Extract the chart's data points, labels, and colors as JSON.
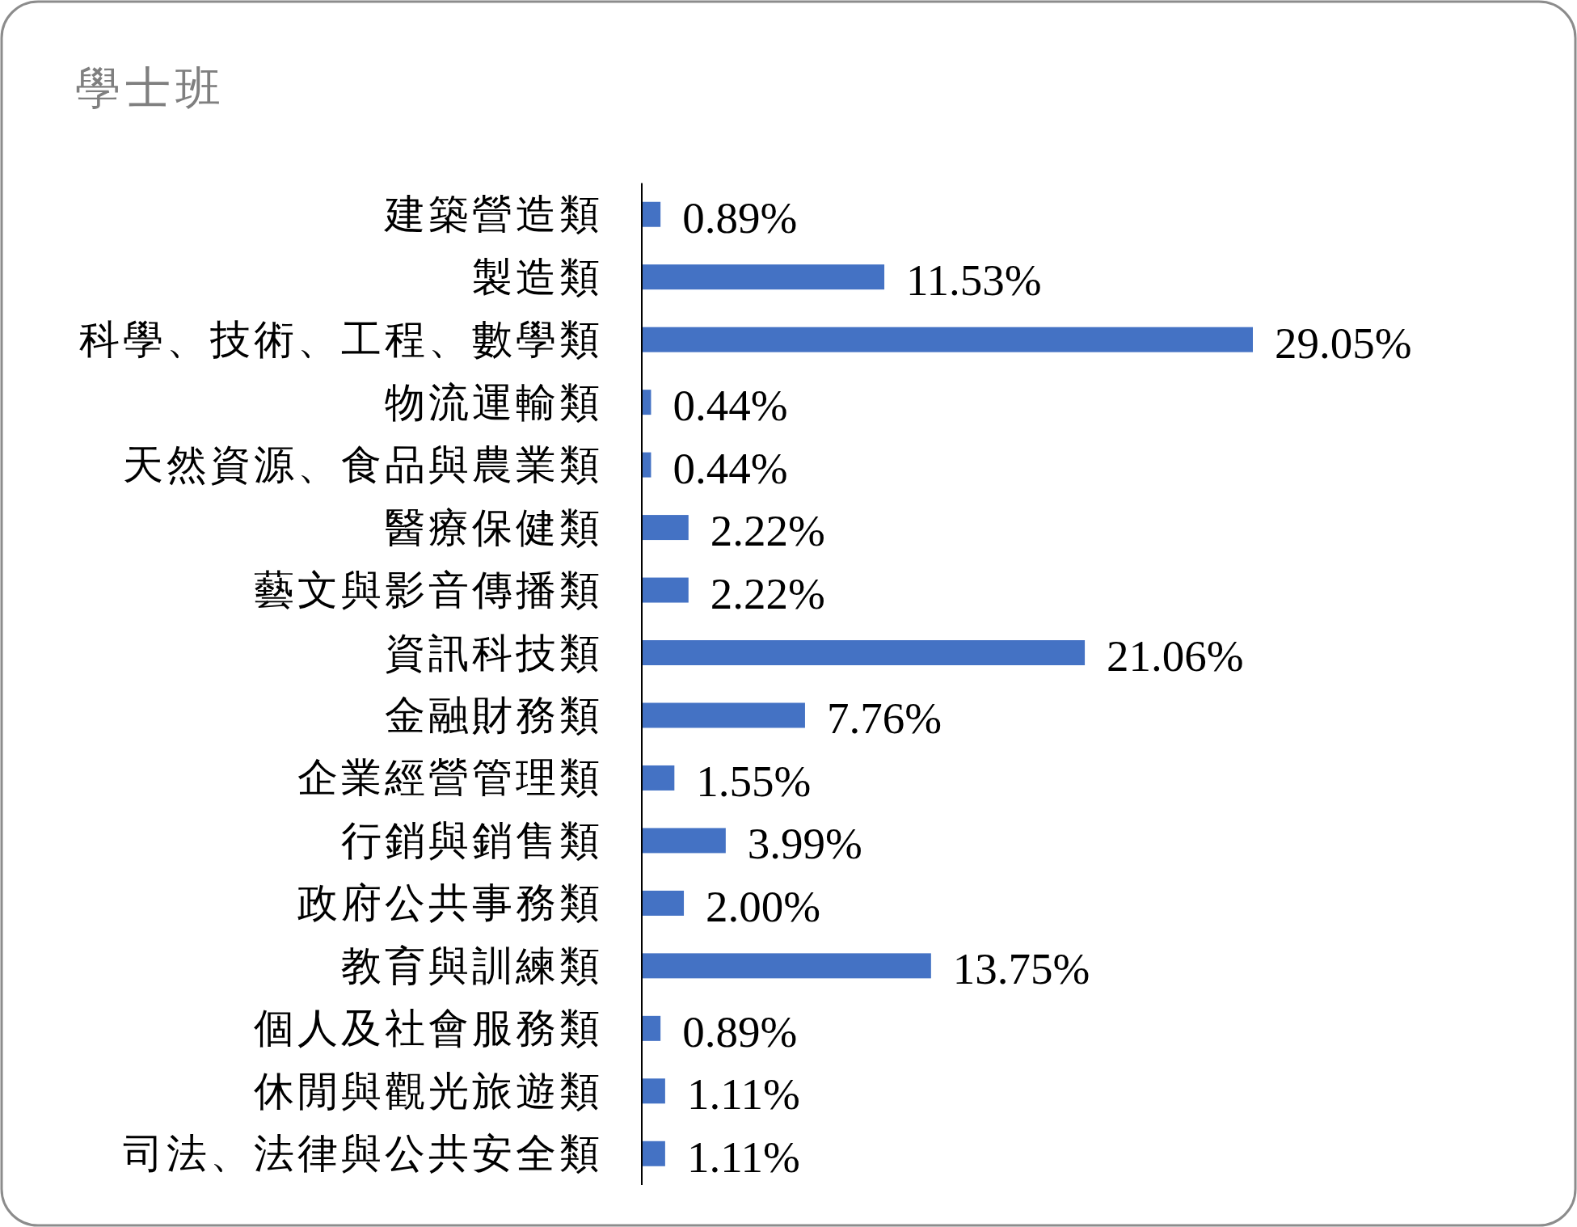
{
  "chart_data": {
    "type": "bar",
    "orientation": "horizontal",
    "title": "學士班",
    "categories": [
      "建築營造類",
      "製造類",
      "科學、技術、工程、數學類",
      "物流運輸類",
      "天然資源、食品與農業類",
      "醫療保健類",
      "藝文與影音傳播類",
      "資訊科技類",
      "金融財務類",
      "企業經營管理類",
      "行銷與銷售類",
      "政府公共事務類",
      "教育與訓練類",
      "個人及社會服務類",
      "休閒與觀光旅遊類",
      "司法、法律與公共安全類"
    ],
    "values": [
      0.89,
      11.53,
      29.05,
      0.44,
      0.44,
      2.22,
      2.22,
      21.06,
      7.76,
      1.55,
      3.99,
      2.0,
      13.75,
      0.89,
      1.11,
      1.11
    ],
    "value_labels": [
      "0.89%",
      "11.53%",
      "29.05%",
      "0.44%",
      "0.44%",
      "2.22%",
      "2.22%",
      "21.06%",
      "7.76%",
      "1.55%",
      "3.99%",
      "2.00%",
      "13.75%",
      "0.89%",
      "1.11%",
      "1.11%"
    ],
    "color": "#4472c4",
    "tick_labels": "y"
  }
}
